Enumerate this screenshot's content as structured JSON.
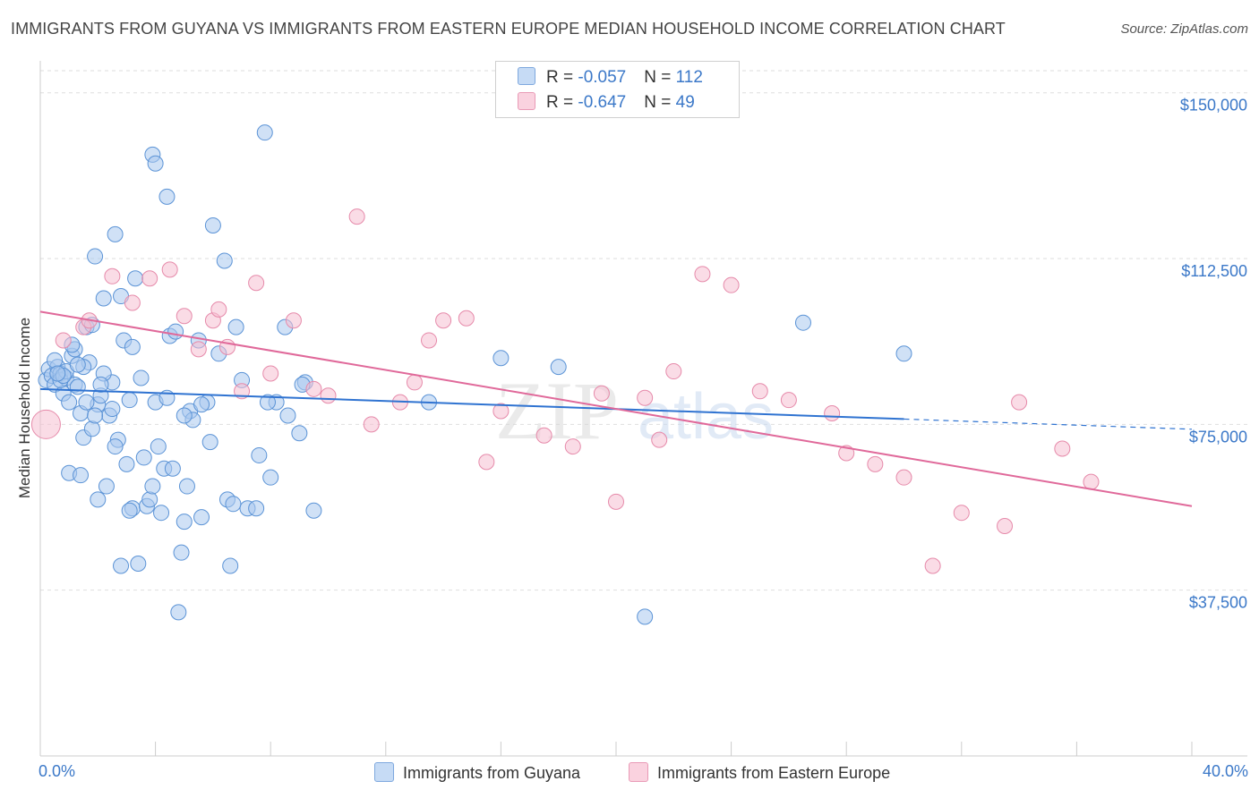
{
  "title": "IMMIGRANTS FROM GUYANA VS IMMIGRANTS FROM EASTERN EUROPE MEDIAN HOUSEHOLD INCOME CORRELATION CHART",
  "source": "Source: ZipAtlas.com",
  "watermark": {
    "zip": "ZIP",
    "atlas": "atlas"
  },
  "colors": {
    "blue_fill": "#a9c8ef",
    "blue_stroke": "#5b93d6",
    "blue_line": "#2f73d1",
    "pink_fill": "#f6bfd1",
    "pink_stroke": "#e68aaa",
    "pink_line": "#e0699a",
    "axis_text": "#3b78c8",
    "grid": "#dedede"
  },
  "legend": {
    "rows": [
      {
        "r_label": "R = ",
        "r_value": "-0.057",
        "n_label": "N = ",
        "n_value": "112",
        "series": "guyana"
      },
      {
        "r_label": "R = ",
        "r_value": "-0.647",
        "n_label": "N = ",
        "n_value": "49",
        "series": "eastern_europe"
      }
    ]
  },
  "chart_data": {
    "type": "scatter",
    "title": "IMMIGRANTS FROM GUYANA VS IMMIGRANTS FROM EASTERN EUROPE MEDIAN HOUSEHOLD INCOME CORRELATION CHART",
    "xlabel": "",
    "ylabel": "Median Household Income",
    "xlim": [
      0,
      40
    ],
    "ylim": [
      0,
      155000
    ],
    "x_tick_labels": [
      "0.0%",
      "40.0%"
    ],
    "y_ticks": [
      {
        "value": 37500,
        "label": "$37,500"
      },
      {
        "value": 75000,
        "label": "$75,000"
      },
      {
        "value": 112500,
        "label": "$112,500"
      },
      {
        "value": 150000,
        "label": "$150,000"
      }
    ],
    "series": [
      {
        "name": "Immigrants from Guyana",
        "key": "guyana",
        "trend": {
          "x_start": 0,
          "y_start": 83000,
          "x_solid_end": 30,
          "y_solid_end": 76200,
          "x_end": 40,
          "y_end": 73900
        },
        "points": [
          [
            0.2,
            85000
          ],
          [
            0.3,
            87500
          ],
          [
            0.4,
            86000
          ],
          [
            0.5,
            84000
          ],
          [
            0.6,
            88000
          ],
          [
            0.7,
            86500
          ],
          [
            0.8,
            82000
          ],
          [
            0.9,
            85500
          ],
          [
            1.0,
            80000
          ],
          [
            1.1,
            90500
          ],
          [
            1.2,
            84000
          ],
          [
            1.3,
            83500
          ],
          [
            1.4,
            77500
          ],
          [
            1.5,
            72000
          ],
          [
            1.6,
            97000
          ],
          [
            1.7,
            89000
          ],
          [
            1.8,
            74000
          ],
          [
            1.9,
            113000
          ],
          [
            2.0,
            79500
          ],
          [
            2.1,
            81500
          ],
          [
            2.2,
            103500
          ],
          [
            2.3,
            61000
          ],
          [
            2.4,
            77000
          ],
          [
            2.5,
            84500
          ],
          [
            2.6,
            118000
          ],
          [
            2.7,
            71500
          ],
          [
            2.8,
            104000
          ],
          [
            2.9,
            94000
          ],
          [
            3.0,
            66000
          ],
          [
            3.1,
            80500
          ],
          [
            3.2,
            56000
          ],
          [
            3.3,
            108000
          ],
          [
            3.4,
            43500
          ],
          [
            3.5,
            85500
          ],
          [
            3.6,
            67500
          ],
          [
            3.7,
            56500
          ],
          [
            3.8,
            58000
          ],
          [
            3.9,
            136000
          ],
          [
            4.0,
            80000
          ],
          [
            4.1,
            70000
          ],
          [
            4.2,
            55000
          ],
          [
            4.3,
            65000
          ],
          [
            4.4,
            81000
          ],
          [
            4.5,
            95000
          ],
          [
            4.6,
            65000
          ],
          [
            4.7,
            96000
          ],
          [
            4.8,
            32500
          ],
          [
            4.9,
            46000
          ],
          [
            5.0,
            53000
          ],
          [
            5.1,
            61000
          ],
          [
            5.2,
            78000
          ],
          [
            5.3,
            76000
          ],
          [
            5.5,
            94000
          ],
          [
            5.6,
            54000
          ],
          [
            5.8,
            80000
          ],
          [
            5.9,
            71000
          ],
          [
            6.0,
            120000
          ],
          [
            6.2,
            91000
          ],
          [
            6.4,
            112000
          ],
          [
            6.5,
            58000
          ],
          [
            6.8,
            97000
          ],
          [
            7.0,
            85000
          ],
          [
            7.2,
            56000
          ],
          [
            7.5,
            56000
          ],
          [
            7.6,
            68000
          ],
          [
            7.8,
            141000
          ],
          [
            8.0,
            63000
          ],
          [
            8.2,
            80000
          ],
          [
            8.5,
            97000
          ],
          [
            8.6,
            77000
          ],
          [
            9.0,
            73000
          ],
          [
            9.2,
            84500
          ],
          [
            9.5,
            55500
          ],
          [
            13.5,
            80000
          ],
          [
            16.0,
            90000
          ],
          [
            18.0,
            88000
          ],
          [
            21.0,
            31500
          ],
          [
            26.5,
            98000
          ],
          [
            30.0,
            91000
          ],
          [
            1.8,
            97500
          ],
          [
            2.8,
            43000
          ],
          [
            1.0,
            64000
          ],
          [
            4.4,
            126500
          ],
          [
            2.0,
            58000
          ],
          [
            1.5,
            88000
          ],
          [
            6.6,
            43000
          ],
          [
            0.7,
            85000
          ],
          [
            1.2,
            92000
          ],
          [
            1.9,
            77000
          ],
          [
            2.6,
            70000
          ],
          [
            3.1,
            55500
          ],
          [
            3.9,
            61000
          ],
          [
            5.0,
            77000
          ],
          [
            5.6,
            79500
          ],
          [
            6.7,
            57000
          ],
          [
            1.1,
            93000
          ],
          [
            0.9,
            87000
          ],
          [
            1.4,
            63500
          ],
          [
            2.2,
            86500
          ],
          [
            0.5,
            89500
          ],
          [
            0.8,
            86000
          ],
          [
            1.3,
            88500
          ],
          [
            2.5,
            78500
          ],
          [
            3.2,
            92500
          ],
          [
            4.0,
            134000
          ],
          [
            7.9,
            80000
          ],
          [
            9.1,
            84000
          ],
          [
            1.6,
            80000
          ],
          [
            2.1,
            84000
          ],
          [
            0.6,
            86500
          ]
        ]
      },
      {
        "name": "Immigrants from Eastern Europe",
        "key": "eastern_europe",
        "trend": {
          "x_start": 0,
          "y_start": 100500,
          "x_end": 40,
          "y_end": 56500
        },
        "points": [
          [
            0.2,
            75000
          ],
          [
            0.8,
            94000
          ],
          [
            1.5,
            97000
          ],
          [
            1.7,
            98500
          ],
          [
            2.5,
            108500
          ],
          [
            3.2,
            102500
          ],
          [
            3.8,
            108000
          ],
          [
            4.5,
            110000
          ],
          [
            5.0,
            99500
          ],
          [
            5.5,
            92000
          ],
          [
            6.0,
            98500
          ],
          [
            6.2,
            101000
          ],
          [
            6.5,
            92500
          ],
          [
            7.0,
            82500
          ],
          [
            7.5,
            107000
          ],
          [
            8.0,
            86500
          ],
          [
            8.8,
            98500
          ],
          [
            9.5,
            83000
          ],
          [
            10.0,
            81500
          ],
          [
            11.0,
            122000
          ],
          [
            11.5,
            75000
          ],
          [
            12.5,
            80000
          ],
          [
            13.0,
            84500
          ],
          [
            13.5,
            94000
          ],
          [
            14.0,
            98500
          ],
          [
            14.8,
            99000
          ],
          [
            15.5,
            66500
          ],
          [
            16.0,
            78000
          ],
          [
            17.5,
            72500
          ],
          [
            18.5,
            70000
          ],
          [
            19.5,
            82000
          ],
          [
            20.0,
            57500
          ],
          [
            21.0,
            81000
          ],
          [
            21.5,
            71500
          ],
          [
            22.0,
            87000
          ],
          [
            23.0,
            109000
          ],
          [
            24.0,
            106500
          ],
          [
            25.0,
            82500
          ],
          [
            26.0,
            80500
          ],
          [
            27.5,
            77500
          ],
          [
            28.0,
            68500
          ],
          [
            29.0,
            66000
          ],
          [
            30.0,
            63000
          ],
          [
            31.0,
            43000
          ],
          [
            32.0,
            55000
          ],
          [
            33.5,
            52000
          ],
          [
            34.0,
            80000
          ],
          [
            35.5,
            69500
          ],
          [
            36.5,
            62000
          ]
        ]
      }
    ],
    "legend_position": "bottom-center"
  },
  "bottom_legend": {
    "guyana_label": "Immigrants from Guyana",
    "eastern_europe_label": "Immigrants from Eastern Europe"
  }
}
